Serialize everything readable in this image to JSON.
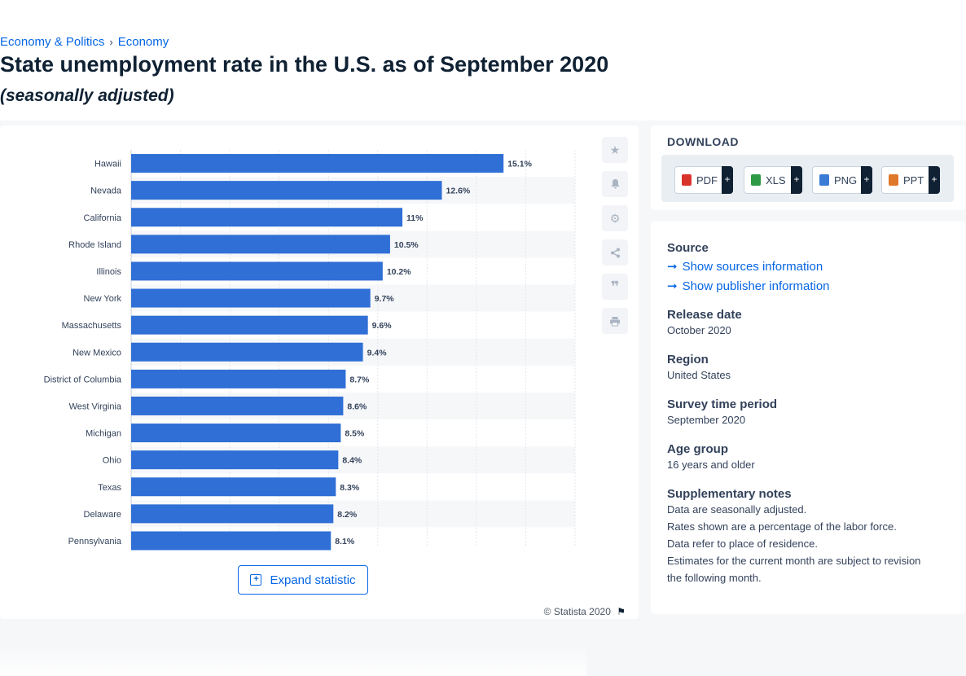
{
  "breadcrumb": {
    "item1": "Economy & Politics",
    "item2": "Economy"
  },
  "title": "State unemployment rate in the U.S. as of September 2020",
  "subtitle": "(seasonally adjusted)",
  "chart_data": {
    "type": "bar",
    "orientation": "horizontal",
    "categories": [
      "Hawaii",
      "Nevada",
      "California",
      "Rhode Island",
      "Illinois",
      "New York",
      "Massachusetts",
      "New Mexico",
      "District of Columbia",
      "West Virginia",
      "Michigan",
      "Ohio",
      "Texas",
      "Delaware",
      "Pennsylvania"
    ],
    "values": [
      15.1,
      12.6,
      11,
      10.5,
      10.2,
      9.7,
      9.6,
      9.4,
      8.7,
      8.6,
      8.5,
      8.4,
      8.3,
      8.2,
      8.1
    ],
    "data_labels": [
      "15.1%",
      "12.6%",
      "11%",
      "10.5%",
      "10.2%",
      "9.7%",
      "9.6%",
      "9.4%",
      "8.7%",
      "8.6%",
      "8.5%",
      "8.4%",
      "8.3%",
      "8.2%",
      "8.1%"
    ],
    "xlim": [
      0,
      18
    ],
    "grid": true,
    "bar_color": "#2f6fd6"
  },
  "tools": [
    "star-icon",
    "bell-icon",
    "gear-icon",
    "share-icon",
    "quote-icon",
    "print-icon"
  ],
  "expand_label": "Expand statistic",
  "copyright": "© Statista 2020",
  "download": {
    "title": "DOWNLOAD",
    "buttons": [
      {
        "label": "PDF",
        "color": "#d9342b"
      },
      {
        "label": "XLS",
        "color": "#2e9a45"
      },
      {
        "label": "PNG",
        "color": "#3a7bd5"
      },
      {
        "label": "PPT",
        "color": "#e0782a"
      }
    ],
    "plus": "+"
  },
  "info": {
    "source_label": "Source",
    "show_sources": "Show sources information",
    "show_publisher": "Show publisher information",
    "release_label": "Release date",
    "release_value": "October 2020",
    "region_label": "Region",
    "region_value": "United States",
    "survey_label": "Survey time period",
    "survey_value": "September 2020",
    "age_label": "Age group",
    "age_value": "16 years and older",
    "notes_label": "Supplementary notes",
    "notes": [
      "Data are seasonally adjusted.",
      "Rates shown are a percentage of the labor force.",
      "Data refer to place of residence.",
      "Estimates for the current month are subject to revision the following month."
    ]
  }
}
